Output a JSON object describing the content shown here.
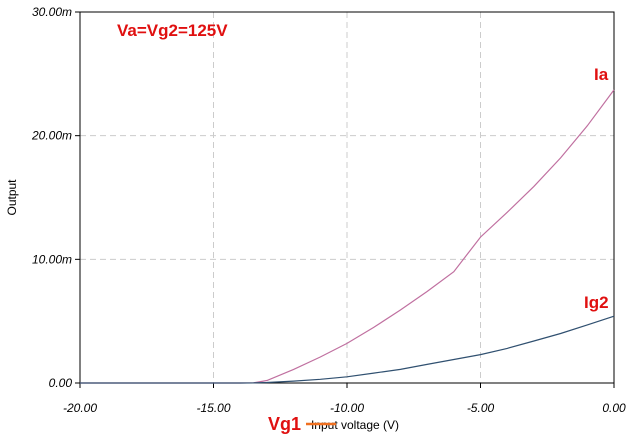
{
  "chart_data": {
    "type": "line",
    "title": "",
    "xlabel": "Input voltage (V)",
    "ylabel": "Output",
    "xlim": [
      -20,
      0
    ],
    "ylim": [
      0,
      0.03
    ],
    "x_ticks": [
      -20,
      -15,
      -10,
      -5,
      0
    ],
    "x_tick_labels": [
      "-20.00",
      "-15.00",
      "-10.00",
      "-5.00",
      "0.00"
    ],
    "y_ticks": [
      0,
      0.01,
      0.02,
      0.03
    ],
    "y_tick_labels": [
      "0.00",
      "10.00m",
      "20.00m",
      "30.00m"
    ],
    "grid": true,
    "series": [
      {
        "name": "Ia",
        "color": "#c070a0",
        "x": [
          -20,
          -15,
          -14,
          -13.5,
          -13,
          -12,
          -11,
          -10,
          -9,
          -8,
          -7,
          -6,
          -5,
          -4,
          -3,
          -2,
          -1,
          0
        ],
        "y": [
          0,
          0,
          0,
          2e-05,
          0.0002,
          0.0011,
          0.0021,
          0.0032,
          0.0045,
          0.0059,
          0.0074,
          0.009,
          0.0118,
          0.0138,
          0.0159,
          0.0182,
          0.0208,
          0.0237
        ]
      },
      {
        "name": "Ig2",
        "color": "#305070",
        "x": [
          -20,
          -15,
          -14,
          -13.5,
          -13,
          -12,
          -11,
          -10,
          -9,
          -8,
          -7,
          -6,
          -5,
          -4,
          -3,
          -2,
          -1,
          0
        ],
        "y": [
          0,
          0,
          0,
          5e-06,
          4e-05,
          0.00015,
          0.0003,
          0.0005,
          0.0008,
          0.0011,
          0.0015,
          0.0019,
          0.0023,
          0.0028,
          0.0034,
          0.004,
          0.0047,
          0.0054
        ]
      }
    ],
    "annotations": {
      "condition": "Va=Vg2=125V",
      "ia_label": "Ia",
      "ig2_label": "Ig2",
      "vg1_label": "Vg1"
    }
  }
}
